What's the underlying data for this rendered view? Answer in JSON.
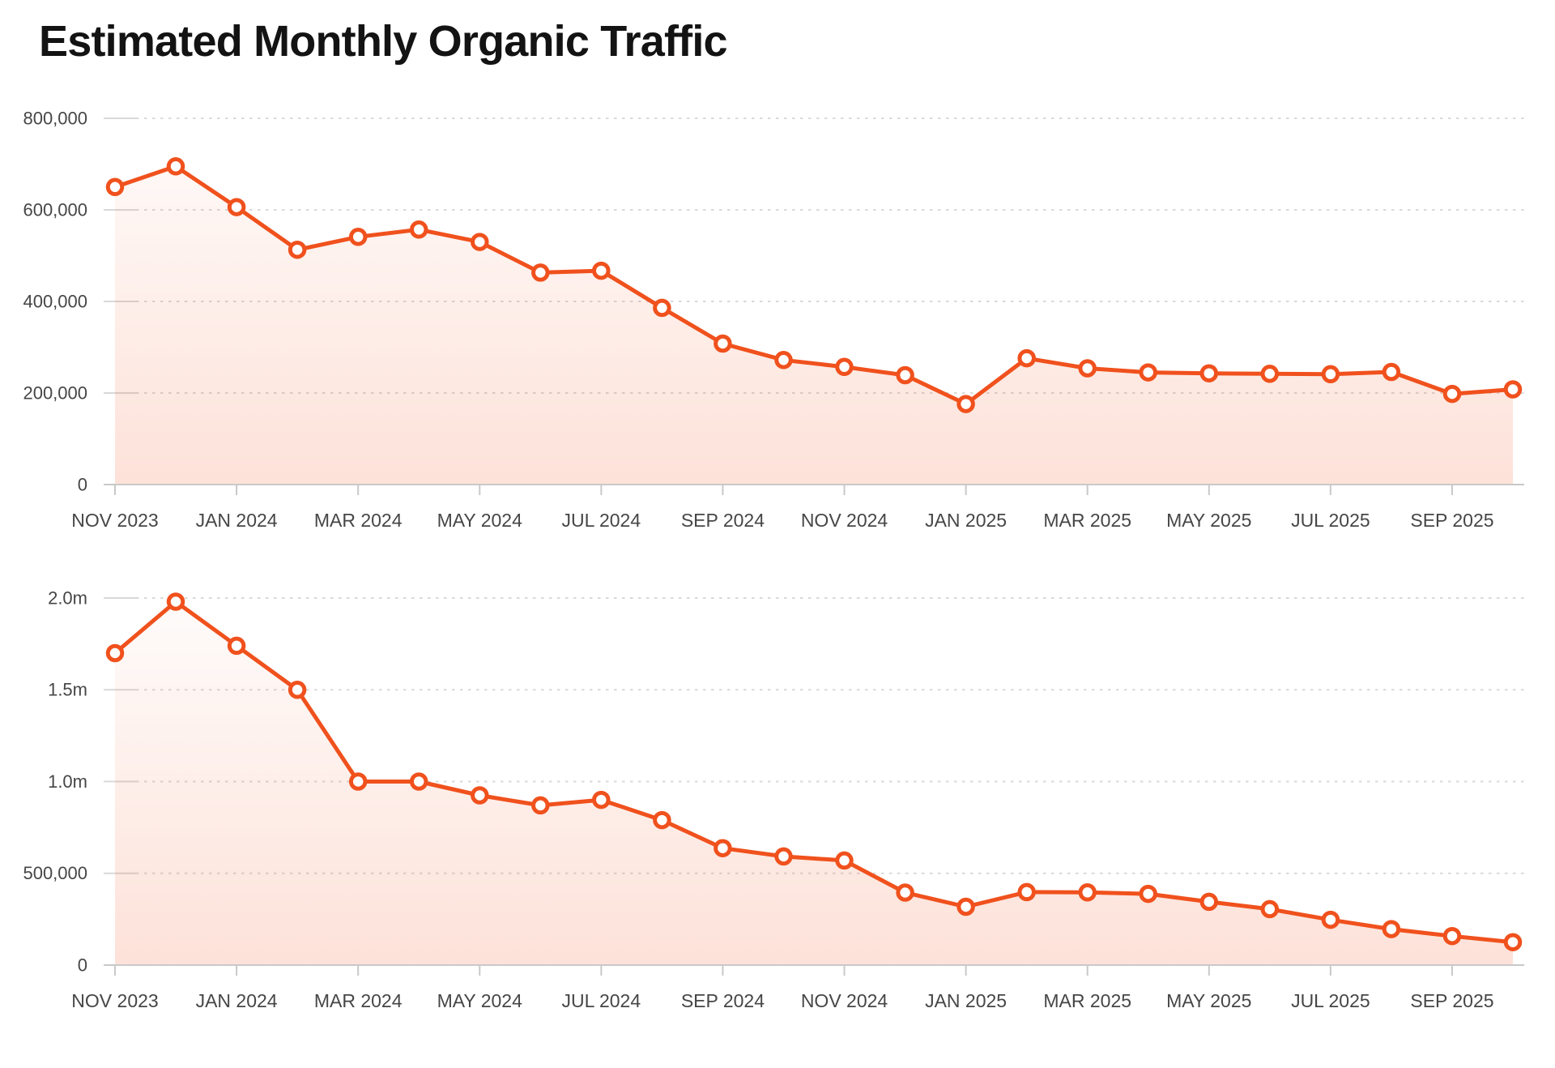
{
  "title": "Estimated Monthly Organic Traffic",
  "colors": {
    "line": "#f0511d",
    "marker_fill": "#ffffff",
    "grid": "#d9d9d9",
    "axis": "#c9c9c9",
    "label": "#464646",
    "title": "#131313",
    "area_top": "rgba(241,81,28,0.02)",
    "area_bottom": "rgba(241,81,28,0.17)"
  },
  "x_tick_labels": [
    "NOV 2023",
    "JAN 2024",
    "MAR 2024",
    "MAY 2024",
    "JUL 2024",
    "SEP 2024",
    "NOV 2024",
    "JAN 2025",
    "MAR 2025",
    "MAY 2025",
    "JUL 2025",
    "SEP 2025"
  ],
  "chart_data": [
    {
      "type": "line",
      "title": "Estimated Monthly Organic Traffic",
      "series_name": "organic-traffic-upper",
      "legend": "none",
      "grid": "dotted-horizontal",
      "x": [
        "Nov 2023",
        "Dec 2023",
        "Jan 2024",
        "Feb 2024",
        "Mar 2024",
        "Apr 2024",
        "May 2024",
        "Jun 2024",
        "Jul 2024",
        "Aug 2024",
        "Sep 2024",
        "Oct 2024",
        "Nov 2024",
        "Dec 2024",
        "Jan 2025",
        "Feb 2025",
        "Mar 2025",
        "Apr 2025",
        "May 2025",
        "Jun 2025",
        "Jul 2025",
        "Aug 2025",
        "Sep 2025",
        "Oct 2025"
      ],
      "values": [
        650000,
        695000,
        606000,
        513000,
        541000,
        557000,
        530000,
        463000,
        467000,
        386000,
        308000,
        272000,
        257000,
        239000,
        176000,
        276000,
        254000,
        245000,
        243000,
        242000,
        241000,
        246000,
        198000,
        208000
      ],
      "ylim": [
        0,
        800000
      ],
      "y_ticks": [
        {
          "value": 800000,
          "label": "800,000"
        },
        {
          "value": 600000,
          "label": "600,000"
        },
        {
          "value": 400000,
          "label": "400,000"
        },
        {
          "value": 200000,
          "label": "200,000"
        },
        {
          "value": 0,
          "label": "0"
        }
      ]
    },
    {
      "type": "line",
      "title": "Estimated Monthly Organic Traffic",
      "series_name": "organic-traffic-lower",
      "legend": "none",
      "grid": "dotted-horizontal",
      "x": [
        "Nov 2023",
        "Dec 2023",
        "Jan 2024",
        "Feb 2024",
        "Mar 2024",
        "Apr 2024",
        "May 2024",
        "Jun 2024",
        "Jul 2024",
        "Aug 2024",
        "Sep 2024",
        "Oct 2024",
        "Nov 2024",
        "Dec 2024",
        "Jan 2025",
        "Feb 2025",
        "Mar 2025",
        "Apr 2025",
        "May 2025",
        "Jun 2025",
        "Jul 2025",
        "Aug 2025",
        "Sep 2025",
        "Oct 2025"
      ],
      "values": [
        1700000,
        1980000,
        1740000,
        1500000,
        1000000,
        1000000,
        925000,
        870000,
        900000,
        790000,
        637000,
        592000,
        570000,
        395000,
        318000,
        398000,
        396000,
        388000,
        345000,
        305000,
        247000,
        196000,
        158000,
        125000
      ],
      "ylim": [
        0,
        2000000
      ],
      "y_ticks": [
        {
          "value": 2000000,
          "label": "2.0m"
        },
        {
          "value": 1500000,
          "label": "1.5m"
        },
        {
          "value": 1000000,
          "label": "1.0m"
        },
        {
          "value": 500000,
          "label": "500,000"
        },
        {
          "value": 0,
          "label": "0"
        }
      ]
    }
  ]
}
